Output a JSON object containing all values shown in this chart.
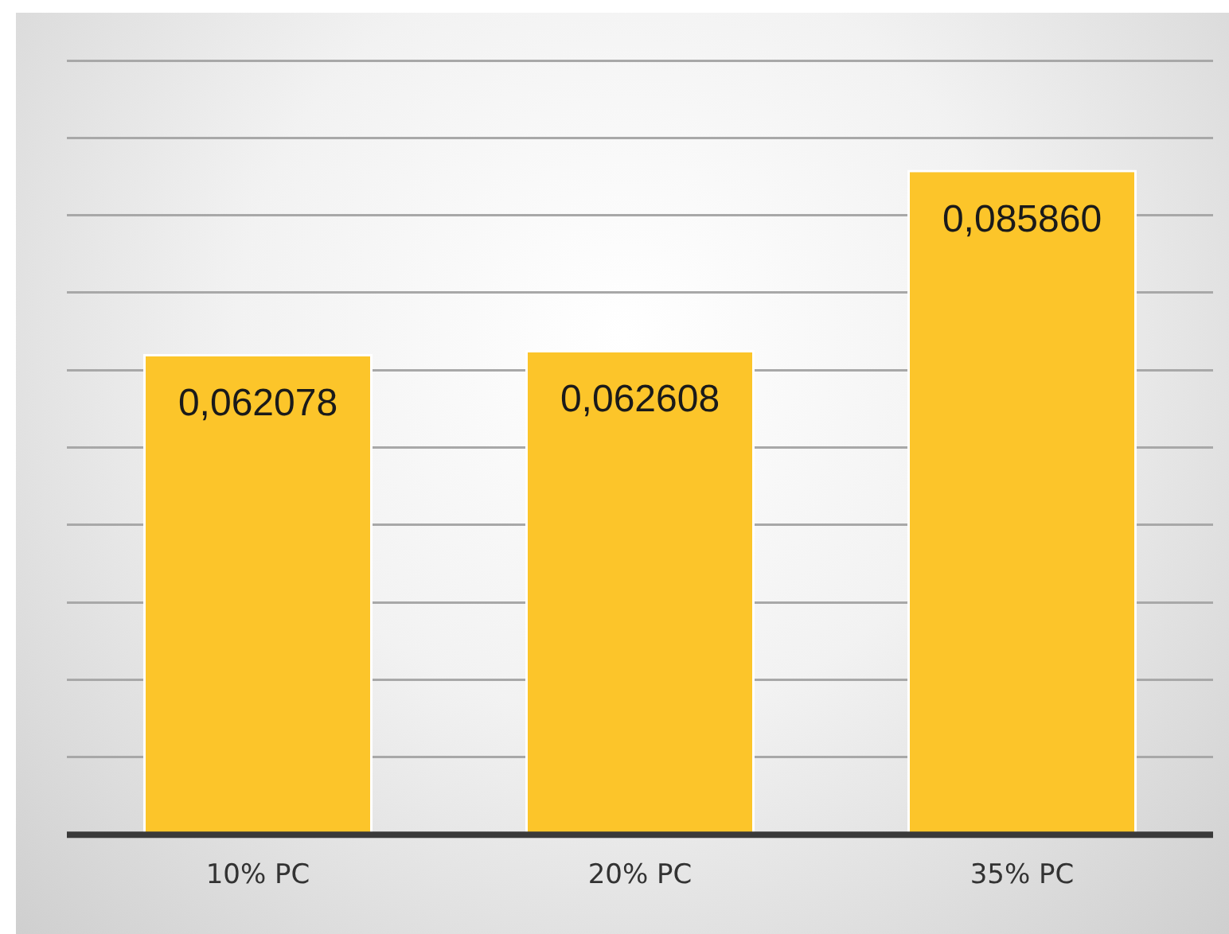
{
  "chart_data": {
    "type": "bar",
    "categories": [
      "10% PC",
      "20% PC",
      "35% PC"
    ],
    "values": [
      0.062078,
      0.062608,
      0.08586
    ],
    "value_labels": [
      "0,062078",
      "0,062608",
      "0,085860"
    ],
    "color": "#fcc52a",
    "ylim": [
      0,
      0.1
    ],
    "grid": "y",
    "tick_labels": "x"
  }
}
